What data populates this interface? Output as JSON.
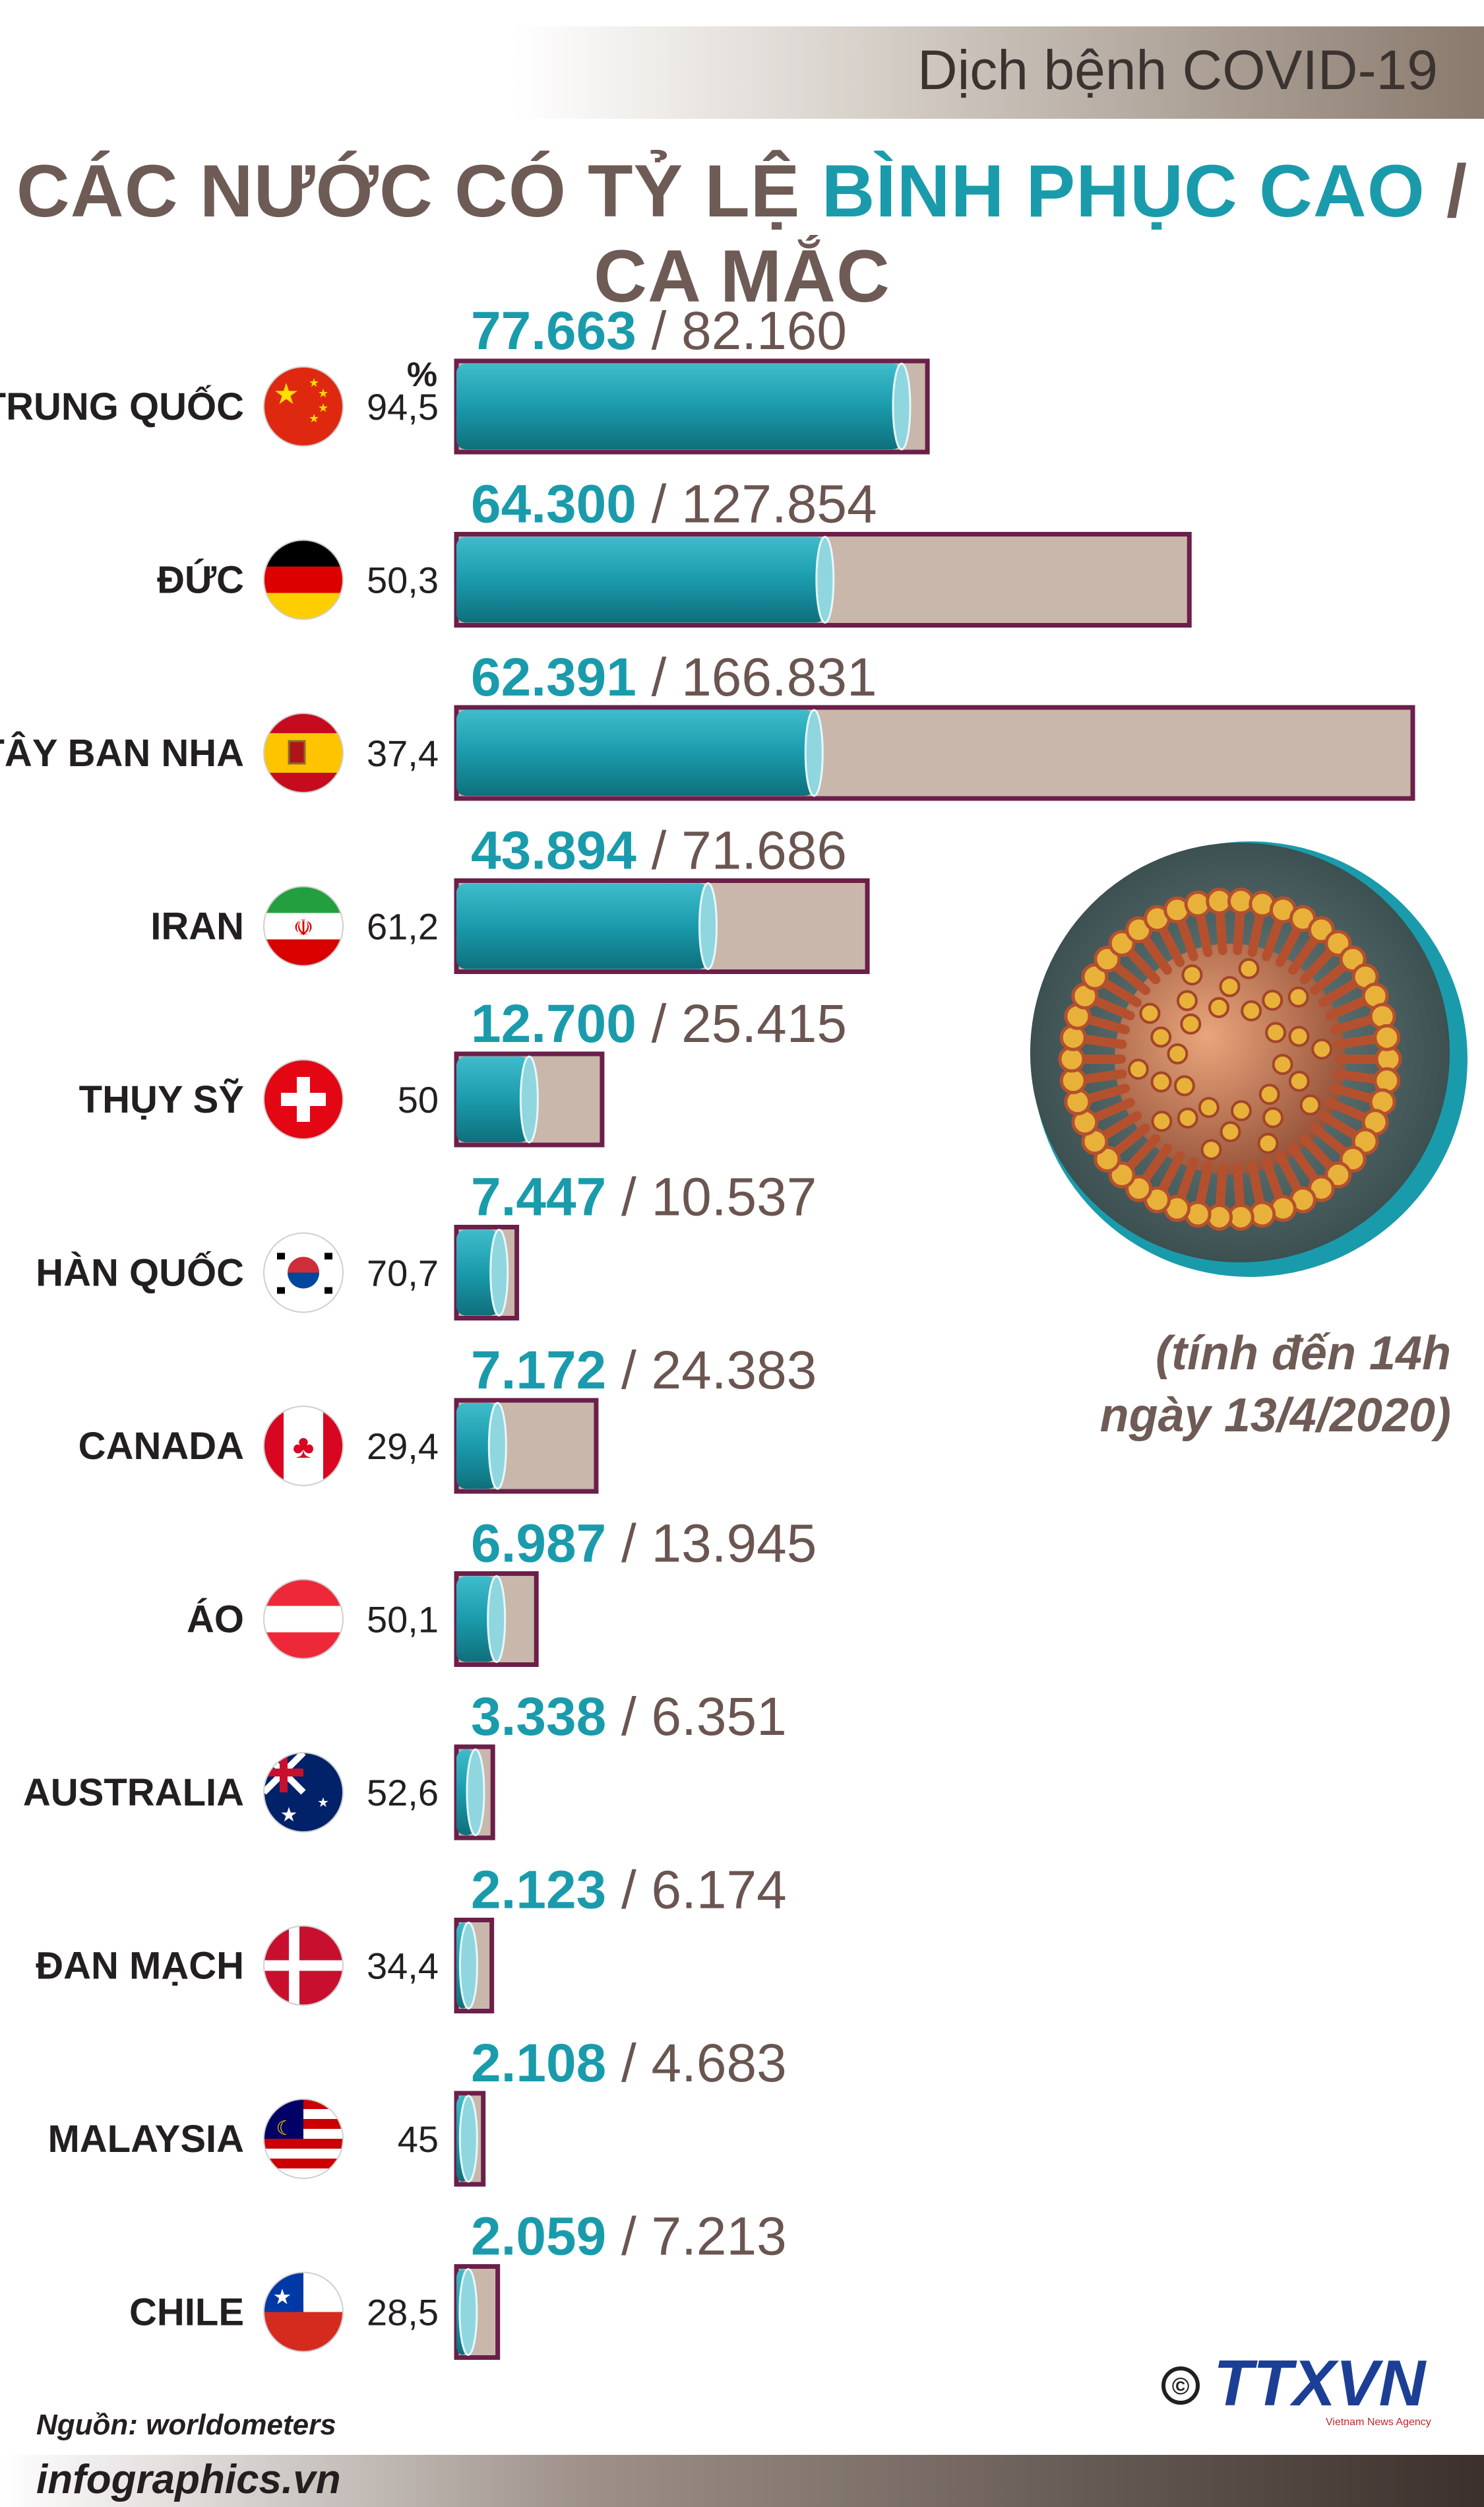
{
  "header": {
    "tag": "Dịch bệnh COVID-19"
  },
  "title": {
    "part1": "CÁC NƯỚC CÓ TỶ LỆ ",
    "highlight": "BÌNH PHỤC CAO",
    "part2": " / CA MẮC"
  },
  "percent_header": "%",
  "note": {
    "line1": "(tính đến 14h",
    "line2": "ngày 13/4/2020)"
  },
  "source": "Nguồn: worldometers",
  "website": "infographics.vn",
  "logo": {
    "copyright": "©",
    "name": "TTXVN",
    "sub": "Vietnam News Agency"
  },
  "colors": {
    "recovered": "#1a9bac",
    "cases_fill": "#c9b7ab",
    "cases_border": "#6b1f4a",
    "title": "#6e5b55"
  },
  "chart_data": {
    "type": "bar",
    "categories": [
      "TRUNG QUỐC",
      "ĐỨC",
      "TÂY BAN NHA",
      "IRAN",
      "THỤY SỸ",
      "HÀN QUỐC",
      "CANADA",
      "ÁO",
      "AUSTRALIA",
      "ĐAN MẠCH",
      "MALAYSIA",
      "CHILE"
    ],
    "series": [
      {
        "name": "recovered",
        "values": [
          77663,
          64300,
          62391,
          43894,
          12700,
          7447,
          7172,
          6987,
          3338,
          2123,
          2108,
          2059
        ]
      },
      {
        "name": "cases",
        "values": [
          82160,
          127854,
          166831,
          71686,
          25415,
          10537,
          24383,
          13945,
          6351,
          6174,
          4683,
          7213
        ]
      }
    ],
    "recovered_labels": [
      "77.663",
      "64.300",
      "62.391",
      "43.894",
      "12.700",
      "7.447",
      "7.172",
      "6.987",
      "3.338",
      "2.123",
      "2.108",
      "2.059"
    ],
    "cases_labels": [
      "82.160",
      "127.854",
      "166.831",
      "71.686",
      "25.415",
      "10.537",
      "24.383",
      "13.945",
      "6.351",
      "6.174",
      "4.683",
      "7.213"
    ],
    "percent_labels": [
      "94,5",
      "50,3",
      "37,4",
      "61,2",
      "50",
      "70,7",
      "29,4",
      "50,1",
      "52,6",
      "34,4",
      "45",
      "28,5"
    ],
    "flags": [
      "china-flag",
      "germany-flag",
      "spain-flag",
      "iran-flag",
      "switzerland-flag",
      "south-korea-flag",
      "canada-flag",
      "austria-flag",
      "australia-flag",
      "denmark-flag",
      "malaysia-flag",
      "chile-flag"
    ],
    "xlim": [
      0,
      166831
    ]
  }
}
